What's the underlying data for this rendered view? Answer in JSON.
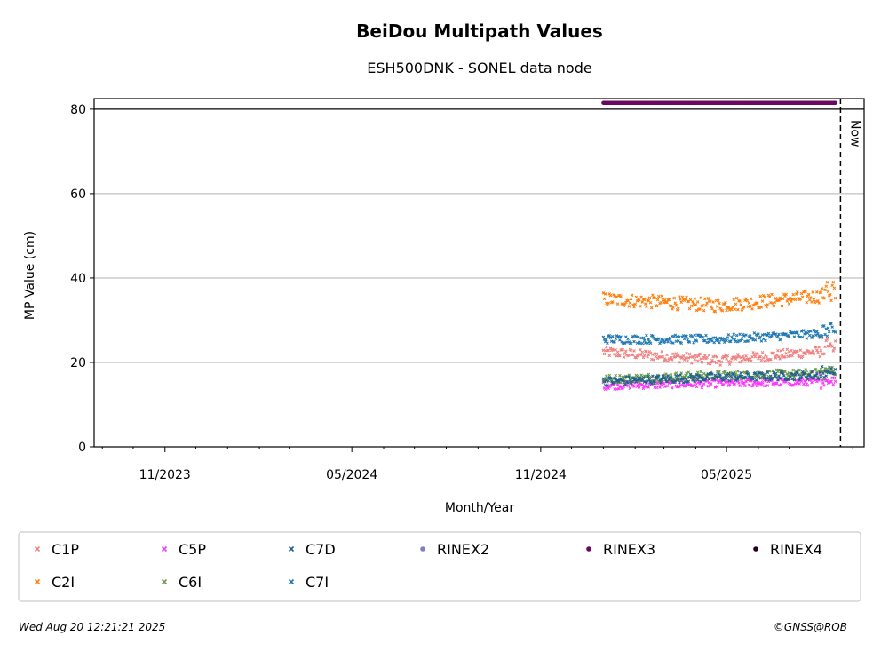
{
  "chart_data": {
    "type": "scatter",
    "title": "BeiDou Multipath Values",
    "subtitle": "ESH500DNK - SONEL data node",
    "xlabel": "Month/Year",
    "ylabel": "MP Value (cm)",
    "xlim": [
      "2023-08-24",
      "2025-09-12"
    ],
    "ylim": [
      0,
      82.5
    ],
    "yticks": [
      0,
      20,
      40,
      60,
      80
    ],
    "xticks": [
      {
        "date": "2023-11-01",
        "label": "11/2023"
      },
      {
        "date": "2024-05-01",
        "label": "05/2024"
      },
      {
        "date": "2024-11-01",
        "label": "11/2024"
      },
      {
        "date": "2025-05-01",
        "label": "05/2025"
      }
    ],
    "grid": "horizontal",
    "now": {
      "date": "2025-08-20",
      "label": "Now"
    },
    "reference_line_y": 80,
    "legend_placement": "below",
    "series": [
      {
        "name": "C1P",
        "color": "#f08080",
        "marker": "x",
        "start": "2025-01-01",
        "end": "2025-08-15",
        "level_start": 22.5,
        "level_mid": 20.5,
        "level_end": 23,
        "noise": 1.2
      },
      {
        "name": "C2I",
        "color": "#ff7f0e",
        "marker": "x",
        "start": "2025-01-01",
        "end": "2025-08-15",
        "level_start": 35,
        "level_mid": 33.5,
        "level_end": 36,
        "noise": 1.6
      },
      {
        "name": "C5P",
        "color": "#ff33ff",
        "marker": "x",
        "start": "2025-01-01",
        "end": "2025-08-15",
        "level_start": 14.5,
        "level_mid": 15,
        "level_end": 15.5,
        "noise": 0.9
      },
      {
        "name": "C6I",
        "color": "#6a994e",
        "marker": "x",
        "start": "2025-01-01",
        "end": "2025-08-15",
        "level_start": 16,
        "level_mid": 17,
        "level_end": 17.5,
        "noise": 1.0
      },
      {
        "name": "C7D",
        "color": "#1f5f8b",
        "marker": "x",
        "start": "2025-01-01",
        "end": "2025-08-15",
        "level_start": 15.5,
        "level_mid": 16.5,
        "level_end": 17,
        "noise": 1.0
      },
      {
        "name": "C7I",
        "color": "#1f77b4",
        "marker": "x",
        "start": "2025-01-01",
        "end": "2025-08-15",
        "level_start": 25.5,
        "level_mid": 25.5,
        "level_end": 27,
        "noise": 1.0
      },
      {
        "name": "RINEX2",
        "color": "#8080c0",
        "marker": "dot",
        "points": []
      },
      {
        "name": "RINEX3",
        "color": "#6a0a5f",
        "marker": "dot",
        "start": "2025-01-01",
        "end": "2025-08-15",
        "level_start": 81.5,
        "level_mid": 81.5,
        "level_end": 81.5,
        "noise": 0
      },
      {
        "name": "RINEX4",
        "color": "#2a0020",
        "marker": "dot",
        "points": []
      }
    ]
  },
  "footer": {
    "timestamp": "Wed Aug 20 12:21:21 2025",
    "copyright": "©GNSS@ROB"
  }
}
